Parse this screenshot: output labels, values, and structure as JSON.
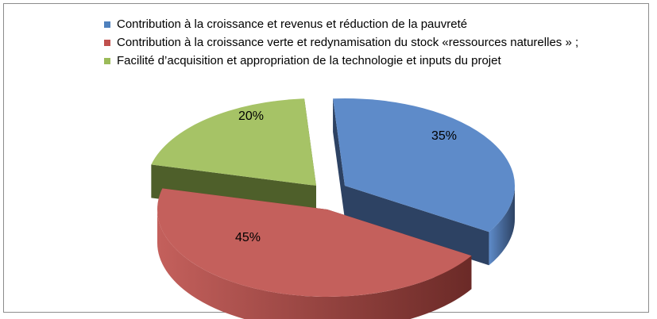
{
  "chart_data": {
    "type": "pie",
    "title": "",
    "legend_position": "top",
    "series": [
      {
        "name": "Contribution à la croissance et revenus et réduction de la pauvreté",
        "value": 35,
        "label": "35%",
        "color": "#5e8bc9",
        "dark_color": "#2d4263"
      },
      {
        "name": "Contribution à la croissance verte et redynamisation du stock «ressources naturelles » ;",
        "value": 45,
        "label": "45%",
        "color": "#c4605c",
        "dark_color": "#6b2a27"
      },
      {
        "name": "Facilité d’acquisition et appropriation de la technologie et inputs du projet",
        "value": 20,
        "label": "20%",
        "color": "#a6c366",
        "dark_color": "#4e5f2a"
      }
    ]
  }
}
